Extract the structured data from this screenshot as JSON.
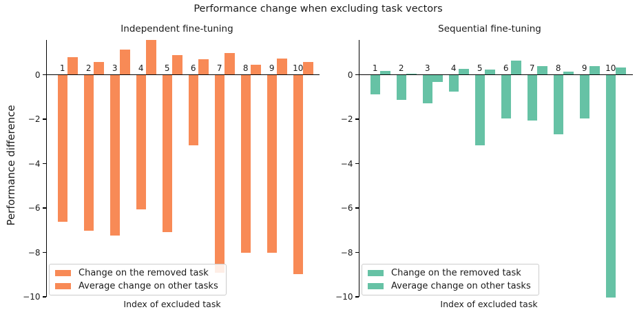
{
  "title": "Performance change when excluding task vectors",
  "ylabel": "Performance difference",
  "colors": {
    "independent_bar": "#f88a56",
    "sequential_bar": "#66c2a5",
    "axis": "#000000",
    "text": "#1a1a1a",
    "legend_border": "#cccccc"
  },
  "chart_data": [
    {
      "type": "bar",
      "title": "Independent fine-tuning",
      "xlabel": "Index of excluded task",
      "ylabel": "Performance difference",
      "color": "#f88a56",
      "categories": [
        "1",
        "2",
        "3",
        "4",
        "5",
        "6",
        "7",
        "8",
        "9",
        "10"
      ],
      "series": [
        {
          "name": "Change on the removed task",
          "values": [
            -6.65,
            -7.05,
            -7.25,
            -6.1,
            -7.1,
            -3.2,
            -8.95,
            -8.05,
            -8.05,
            -9.0
          ]
        },
        {
          "name": "Average change on other tasks",
          "values": [
            0.77,
            0.54,
            1.1,
            1.55,
            0.86,
            0.67,
            0.95,
            0.42,
            0.7,
            0.56
          ]
        }
      ],
      "yticks": [
        0,
        -2,
        -4,
        -6,
        -8,
        -10
      ],
      "ylim": [
        -10.35,
        1.55
      ],
      "legend_position": "lower left",
      "grid": false
    },
    {
      "type": "bar",
      "title": "Sequential fine-tuning",
      "xlabel": "Index of excluded task",
      "ylabel": "",
      "color": "#66c2a5",
      "categories": [
        "1",
        "2",
        "3",
        "4",
        "5",
        "6",
        "7",
        "8",
        "9",
        "10"
      ],
      "series": [
        {
          "name": "Change on the removed task",
          "values": [
            -0.9,
            -1.15,
            -1.3,
            -0.8,
            -3.2,
            -2.0,
            -2.1,
            -2.7,
            -2.0,
            -10.07
          ]
        },
        {
          "name": "Average change on other tasks",
          "values": [
            0.15,
            0.02,
            -0.35,
            0.25,
            0.2,
            0.6,
            0.35,
            0.1,
            0.35,
            0.3
          ]
        }
      ],
      "yticks": [
        0,
        -2,
        -4,
        -6,
        -8,
        -10
      ],
      "ylim": [
        -10.35,
        1.55
      ],
      "legend_position": "lower left",
      "grid": false
    }
  ]
}
